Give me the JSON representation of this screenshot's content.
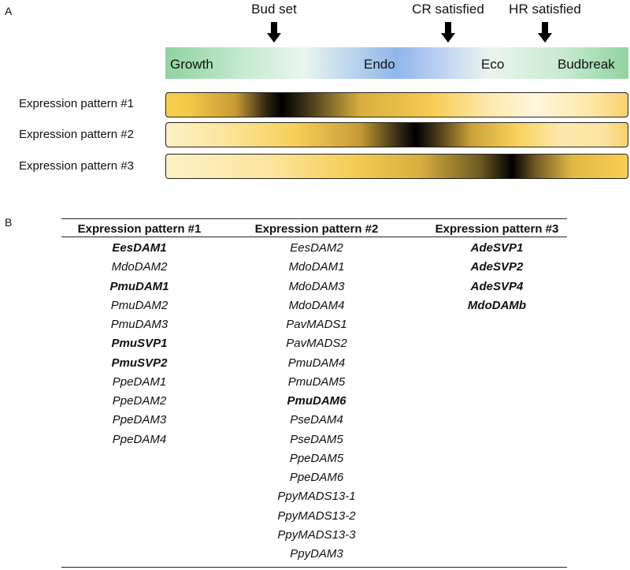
{
  "panel_a_letter": "A",
  "panel_b_letter": "B",
  "events": [
    {
      "label": "Bud set"
    },
    {
      "label": "CR satisfied"
    },
    {
      "label": "HR satisfied"
    }
  ],
  "phases": [
    "Growth",
    "Endo",
    "Eco",
    "Budbreak"
  ],
  "patterns": [
    "Expression pattern #1",
    "Expression pattern #2",
    "Expression pattern #3"
  ],
  "colors": {
    "growth_green": "#8fd3a0",
    "endo_blue": "#8fb6ea",
    "high_expr_yellow": "#f8cf4d",
    "peak_black": "#000000"
  },
  "table": {
    "headers": [
      "Expression pattern #1",
      "Expression pattern #2",
      "Expression pattern #3"
    ],
    "columns": [
      [
        {
          "name": "EesDAM1",
          "bold": true
        },
        {
          "name": "MdoDAM2",
          "bold": false
        },
        {
          "name": "PmuDAM1",
          "bold": true
        },
        {
          "name": "PmuDAM2",
          "bold": false
        },
        {
          "name": "PmuDAM3",
          "bold": false
        },
        {
          "name": "PmuSVP1",
          "bold": true
        },
        {
          "name": "PmuSVP2",
          "bold": true
        },
        {
          "name": "PpeDAM1",
          "bold": false
        },
        {
          "name": "PpeDAM2",
          "bold": false
        },
        {
          "name": "PpeDAM3",
          "bold": false
        },
        {
          "name": "PpeDAM4",
          "bold": false
        }
      ],
      [
        {
          "name": "EesDAM2",
          "bold": false
        },
        {
          "name": "MdoDAM1",
          "bold": false
        },
        {
          "name": "MdoDAM3",
          "bold": false
        },
        {
          "name": "MdoDAM4",
          "bold": false
        },
        {
          "name": "PavMADS1",
          "bold": false
        },
        {
          "name": "PavMADS2",
          "bold": false
        },
        {
          "name": "PmuDAM4",
          "bold": false
        },
        {
          "name": "PmuDAM5",
          "bold": false
        },
        {
          "name": "PmuDAM6",
          "bold": true
        },
        {
          "name": "PseDAM4",
          "bold": false
        },
        {
          "name": "PseDAM5",
          "bold": false
        },
        {
          "name": "PpeDAM5",
          "bold": false
        },
        {
          "name": "PpeDAM6",
          "bold": false
        },
        {
          "name": "PpyMADS13-1",
          "bold": false
        },
        {
          "name": "PpyMADS13-2",
          "bold": false
        },
        {
          "name": "PpyMADS13-3",
          "bold": false
        },
        {
          "name": "PpyDAM3",
          "bold": false
        }
      ],
      [
        {
          "name": "AdeSVP1",
          "bold": true
        },
        {
          "name": "AdeSVP2",
          "bold": true
        },
        {
          "name": "AdeSVP4",
          "bold": true
        },
        {
          "name": "MdoDAMb",
          "bold": true
        }
      ]
    ]
  }
}
